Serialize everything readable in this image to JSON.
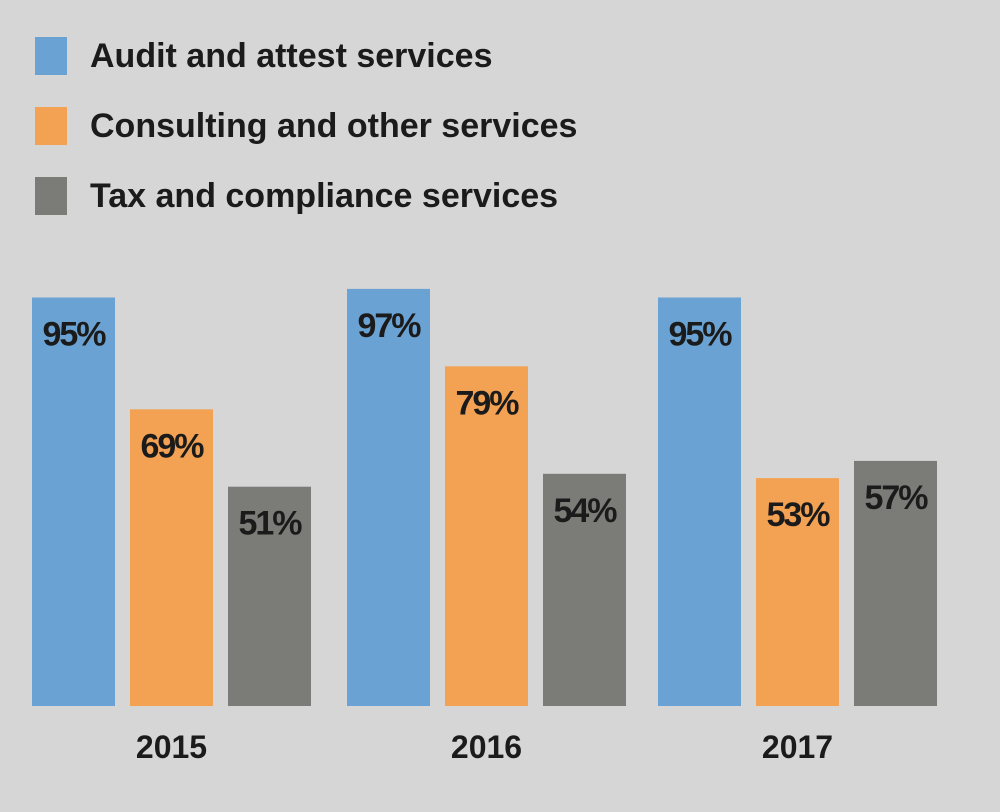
{
  "chart_data": {
    "type": "bar",
    "title": "",
    "xlabel": "",
    "ylabel": "",
    "ylim": [
      0,
      100
    ],
    "grid": false,
    "legend_position": "top-left",
    "categories": [
      "2015",
      "2016",
      "2017"
    ],
    "series": [
      {
        "name": "Audit and attest services",
        "color": "#6aa2d3",
        "values": [
          95,
          97,
          95
        ],
        "labels": [
          "95%",
          "97%",
          "95%"
        ]
      },
      {
        "name": "Consulting and other services",
        "color": "#f3a253",
        "values": [
          69,
          79,
          53
        ],
        "labels": [
          "69%",
          "79%",
          "53%"
        ]
      },
      {
        "name": "Tax and compliance services",
        "color": "#7b7c77",
        "values": [
          51,
          54,
          57
        ],
        "labels": [
          "51%",
          "54%",
          "57%"
        ]
      }
    ]
  }
}
